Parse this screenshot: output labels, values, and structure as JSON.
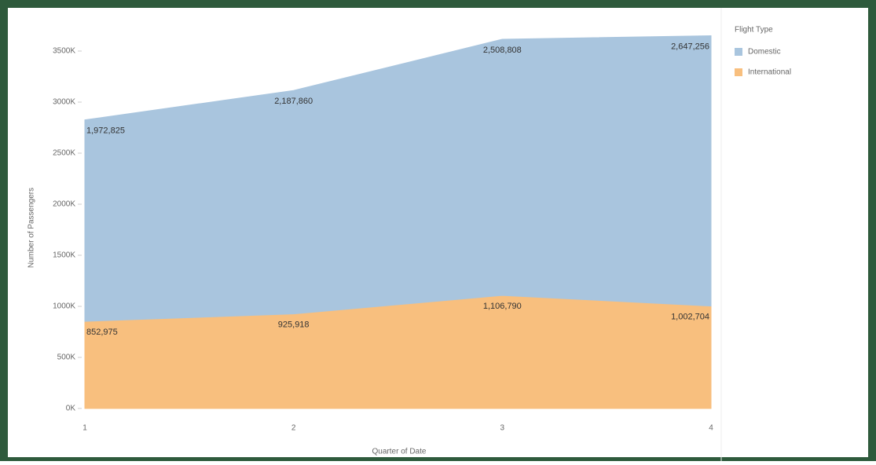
{
  "chart_data": {
    "type": "stacked-area",
    "y_label": "Number of Passengers",
    "x_label": "Quarter of Date",
    "legend_title": "Flight Type",
    "categories": [
      "1",
      "2",
      "3",
      "4"
    ],
    "series": [
      {
        "name": "International",
        "color": "#f8bf7e",
        "values": [
          852975,
          925918,
          1106790,
          1002704
        ],
        "value_labels": [
          "852,975",
          "925,918",
          "1,106,790",
          "1,002,704"
        ]
      },
      {
        "name": "Domestic",
        "color": "#a9c5de",
        "values": [
          1972825,
          2187860,
          2508808,
          2647256
        ],
        "value_labels": [
          "1,972,825",
          "2,187,860",
          "2,508,808",
          "2,647,256"
        ]
      }
    ],
    "ylim": [
      0,
      3600000
    ],
    "yticks": [
      {
        "value": 0,
        "label": "0K"
      },
      {
        "value": 500000,
        "label": "500K"
      },
      {
        "value": 1000000,
        "label": "1000K"
      },
      {
        "value": 1500000,
        "label": "1500K"
      },
      {
        "value": 2000000,
        "label": "2000K"
      },
      {
        "value": 2500000,
        "label": "2500K"
      },
      {
        "value": 3000000,
        "label": "3000K"
      },
      {
        "value": 3500000,
        "label": "3500K"
      }
    ]
  }
}
